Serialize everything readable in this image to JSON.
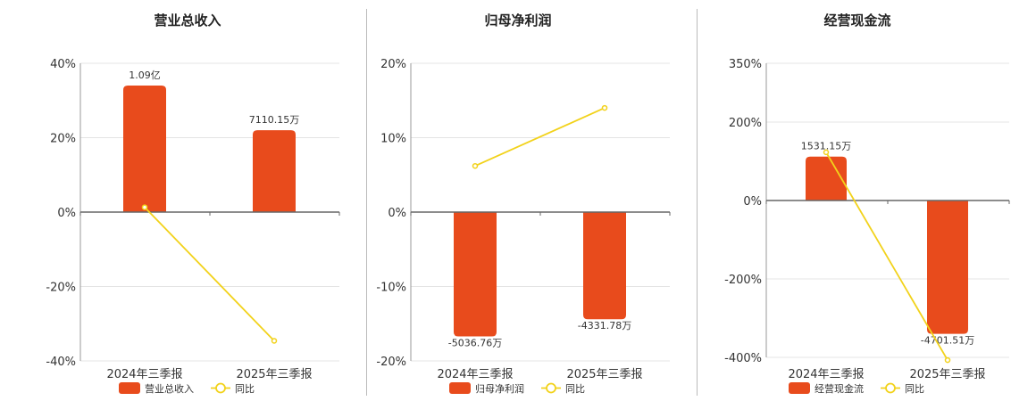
{
  "colors": {
    "bar": "#e84b1c",
    "line": "#f2d21b",
    "grid": "#e4e4e4",
    "axis": "#666666"
  },
  "legend_line_label": "同比",
  "chart_data": [
    {
      "type": "bar",
      "title": "营业总收入",
      "categories": [
        "2024年三季报",
        "2025年三季报"
      ],
      "ylim": [
        -40,
        40
      ],
      "yticks": [
        40,
        20,
        0,
        -20,
        -40
      ],
      "tick_labels": [
        "40%",
        "20%",
        "0%",
        "-20%",
        "-40%"
      ],
      "series": [
        {
          "name": "营业总收入",
          "kind": "bar",
          "axis_values_pct": [
            34,
            22
          ],
          "data_labels": [
            "1.09亿",
            "7110.15万"
          ]
        },
        {
          "name": "同比",
          "kind": "line",
          "values_pct": [
            1.3,
            -34.6
          ]
        }
      ],
      "legend": "bottom"
    },
    {
      "type": "bar",
      "title": "归母净利润",
      "categories": [
        "2024年三季报",
        "2025年三季报"
      ],
      "ylim": [
        -20,
        20
      ],
      "yticks": [
        20,
        10,
        0,
        -10,
        -20
      ],
      "tick_labels": [
        "20%",
        "10%",
        "0%",
        "-10%",
        "-20%"
      ],
      "series": [
        {
          "name": "归母净利润",
          "kind": "bar",
          "axis_values_pct": [
            -16.7,
            -14.4
          ],
          "data_labels": [
            "-5036.76万",
            "-4331.78万"
          ]
        },
        {
          "name": "同比",
          "kind": "line",
          "values_pct": [
            6.2,
            14.0
          ]
        }
      ],
      "legend": "bottom"
    },
    {
      "type": "bar",
      "title": "经营现金流",
      "categories": [
        "2024年三季报",
        "2025年三季报"
      ],
      "ylim": [
        -400,
        350
      ],
      "yticks": [
        350,
        200,
        0,
        -200,
        -400
      ],
      "tick_labels": [
        "350%",
        "200%",
        "0%",
        "-200%",
        "-400%"
      ],
      "series": [
        {
          "name": "经营现金流",
          "kind": "bar",
          "axis_values_pct": [
            112,
            -340
          ],
          "data_labels": [
            "1531.15万",
            "-4701.51万"
          ]
        },
        {
          "name": "同比",
          "kind": "line",
          "values_pct": [
            123,
            -407
          ]
        }
      ],
      "legend": "bottom"
    }
  ]
}
